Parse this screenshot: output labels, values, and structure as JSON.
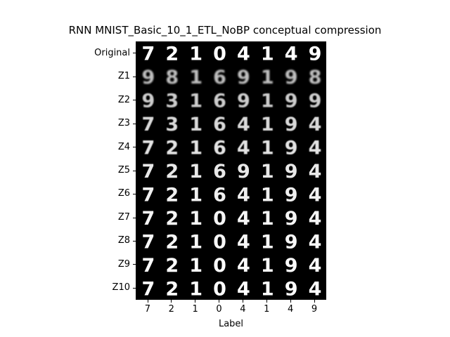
{
  "chart_data": {
    "type": "heatmap",
    "title": "RNN MNIST_Basic_10_1_ETL_NoBP conceptual compression",
    "xlabel": "Label",
    "ylabel": "",
    "x_ticks": [
      "7",
      "2",
      "1",
      "0",
      "4",
      "1",
      "4",
      "9"
    ],
    "y_ticks": [
      "Original",
      "Z1",
      "Z2",
      "Z3",
      "Z4",
      "Z5",
      "Z6",
      "Z7",
      "Z8",
      "Z9",
      "Z10"
    ],
    "cell_content": "grayscale digit images, white strokes on black background",
    "displayed_digits": [
      [
        "7",
        "2",
        "1",
        "0",
        "4",
        "1",
        "4",
        "9"
      ],
      [
        "9",
        "8",
        "1",
        "6",
        "9",
        "1",
        "9",
        "8"
      ],
      [
        "9",
        "3",
        "1",
        "6",
        "9",
        "1",
        "9",
        "9"
      ],
      [
        "7",
        "3",
        "1",
        "6",
        "4",
        "1",
        "9",
        "4"
      ],
      [
        "7",
        "2",
        "1",
        "6",
        "4",
        "1",
        "9",
        "4"
      ],
      [
        "7",
        "2",
        "1",
        "6",
        "9",
        "1",
        "9",
        "4"
      ],
      [
        "7",
        "2",
        "1",
        "6",
        "4",
        "1",
        "9",
        "4"
      ],
      [
        "7",
        "2",
        "1",
        "0",
        "4",
        "1",
        "9",
        "4"
      ],
      [
        "7",
        "2",
        "1",
        "0",
        "4",
        "1",
        "9",
        "4"
      ],
      [
        "7",
        "2",
        "1",
        "0",
        "4",
        "1",
        "9",
        "4"
      ],
      [
        "7",
        "2",
        "1",
        "0",
        "4",
        "1",
        "9",
        "4"
      ]
    ],
    "row_blur": [
      0.0,
      1.0,
      0.8,
      0.6,
      0.45,
      0.35,
      0.25,
      0.15,
      0.1,
      0.05,
      0.0
    ],
    "colors": {
      "background": "#000000",
      "stroke": "#ffffff"
    }
  }
}
